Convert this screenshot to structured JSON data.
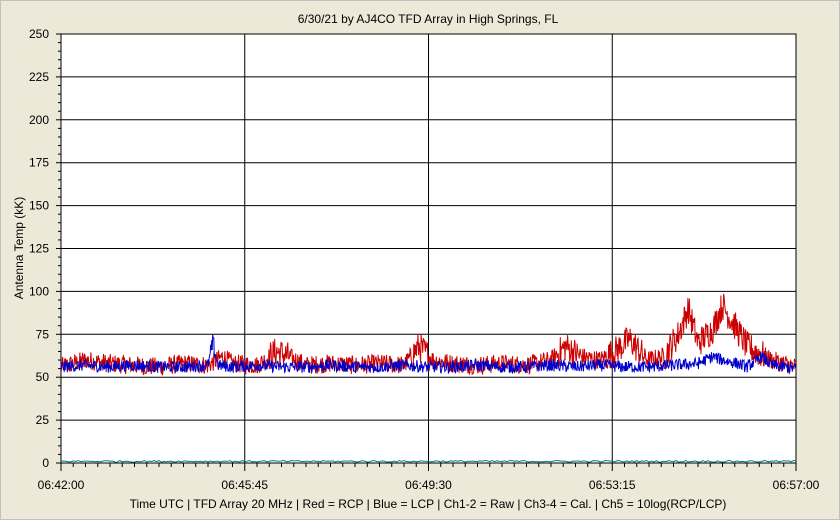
{
  "chart_data": {
    "type": "line",
    "title": "6/30/21  by  AJ4CO TFD Array  in  High Springs, FL",
    "ylabel": "Antenna Temp (kK)",
    "xlabel": "Time UTC | TFD Array 20 MHz | Red = RCP | Blue = LCP | Ch1-2 = Raw | Ch3-4 = Cal. | Ch5 = 10log(RCP/LCP)",
    "ylim": [
      0,
      250
    ],
    "yticks": [
      0,
      25,
      50,
      75,
      100,
      125,
      150,
      175,
      200,
      225,
      250
    ],
    "xlim": [
      "06:42:00",
      "06:57:00"
    ],
    "xticks": [
      "06:42:00",
      "06:45:45",
      "06:49:30",
      "06:53:15",
      "06:57:00"
    ],
    "grid": true,
    "colors": {
      "rcp": "#cc0000",
      "lcp": "#0000cc",
      "ratio": "#008080",
      "background": "#ffffff",
      "frame": "#ece9d8"
    },
    "series": [
      {
        "name": "RCP",
        "x_minutes": [
          0,
          0.5,
          1,
          1.5,
          2,
          2.5,
          3,
          3.3,
          3.5,
          4,
          4.4,
          4.8,
          5,
          5.5,
          6,
          6.5,
          7,
          7.3,
          7.6,
          8,
          8.5,
          9,
          9.5,
          10,
          10.3,
          10.6,
          11,
          11.3,
          11.6,
          11.9,
          12,
          12.3,
          12.6,
          12.8,
          13,
          13.3,
          13.5,
          14,
          14.5,
          15
        ],
        "values": [
          56,
          60,
          58,
          57,
          56,
          58,
          57,
          62,
          58,
          57,
          65,
          60,
          57,
          58,
          57,
          58,
          57,
          68,
          60,
          58,
          57,
          58,
          57,
          60,
          68,
          62,
          60,
          65,
          72,
          62,
          60,
          62,
          75,
          90,
          70,
          78,
          92,
          68,
          60,
          56
        ]
      },
      {
        "name": "LCP",
        "x_minutes": [
          0,
          0.5,
          1,
          1.5,
          2,
          2.5,
          3,
          3.1,
          3.2,
          3.5,
          4,
          4.5,
          5,
          5.5,
          6,
          6.5,
          7,
          7.5,
          8,
          8.5,
          9,
          9.5,
          10,
          10.5,
          11,
          11.5,
          12,
          12.5,
          13,
          13.3,
          13.5,
          13.8,
          14,
          14.3,
          14.5,
          15
        ],
        "values": [
          56,
          57,
          56,
          57,
          56,
          56,
          57,
          70,
          57,
          56,
          57,
          56,
          56,
          57,
          56,
          56,
          57,
          56,
          56,
          57,
          56,
          56,
          57,
          56,
          57,
          56,
          56,
          57,
          58,
          62,
          60,
          58,
          56,
          62,
          57,
          55
        ]
      },
      {
        "name": "Ch5",
        "x_minutes": [
          0,
          3,
          7.5,
          10,
          11,
          12.5,
          13.5,
          15
        ],
        "values": [
          1,
          1,
          1,
          1,
          1,
          1,
          1,
          1
        ]
      }
    ]
  }
}
